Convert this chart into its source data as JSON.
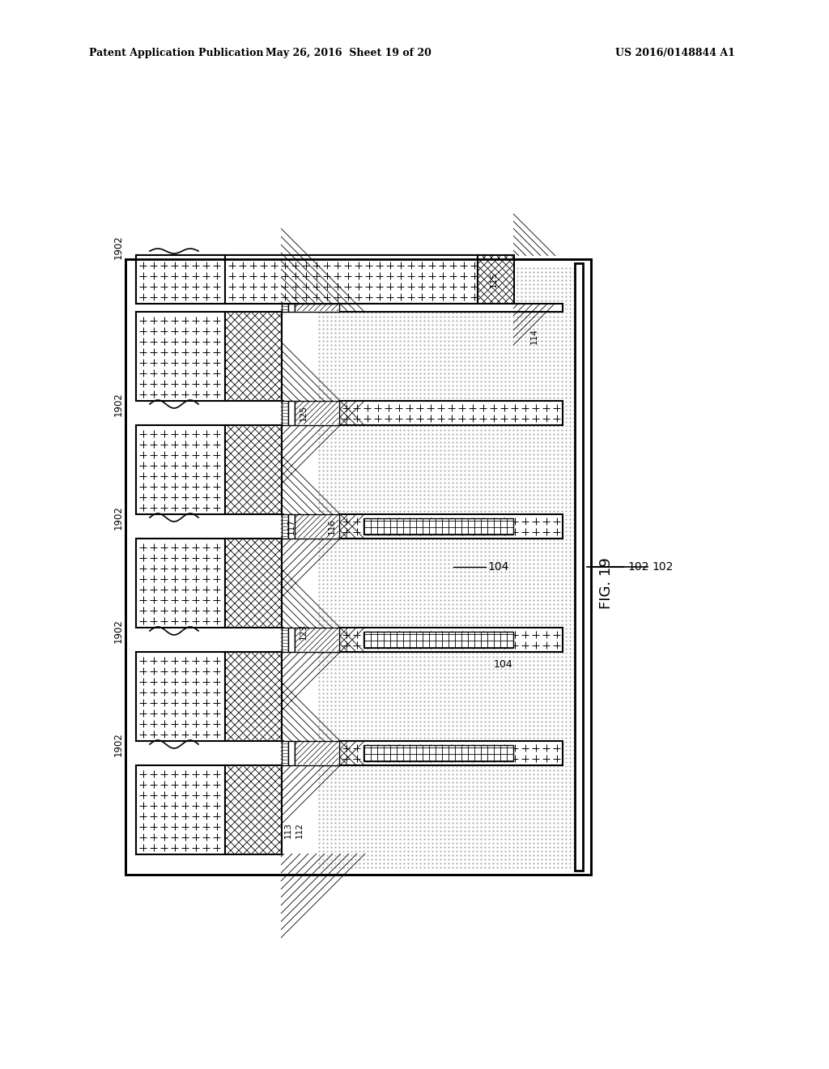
{
  "title_left": "Patent Application Publication",
  "title_mid": "May 26, 2016  Sheet 19 of 20",
  "title_right": "US 2016/0148844 A1",
  "fig_label": "FIG. 19",
  "bg_color": "#ffffff",
  "outer_border_color": "#000000",
  "diagram": {
    "substrate_label": "102",
    "nwell_label": "104",
    "note_1902": "1902",
    "labels": [
      "112",
      "113",
      "115",
      "114",
      "116",
      "117",
      "123",
      "125"
    ]
  }
}
